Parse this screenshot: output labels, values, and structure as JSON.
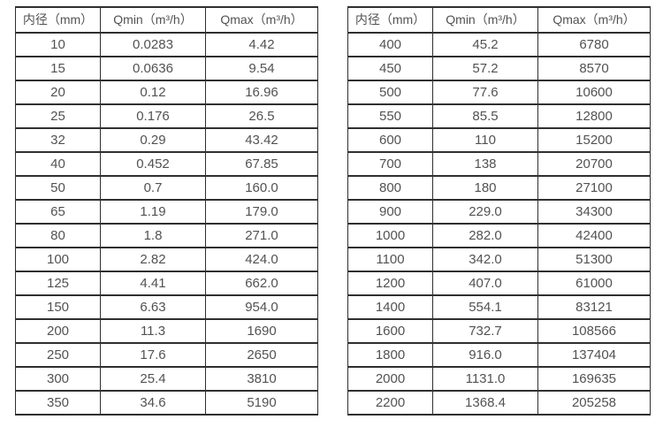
{
  "colors": {
    "background": "#ffffff",
    "border": "#2f2f2f",
    "text": "#525252"
  },
  "chart_data": [
    {
      "type": "table",
      "title": "",
      "columns": [
        "内径（mm）",
        "Qmin（m³/h）",
        "Qmax（m³/h）"
      ],
      "rows": [
        [
          "10",
          "0.0283",
          "4.42"
        ],
        [
          "15",
          "0.0636",
          "9.54"
        ],
        [
          "20",
          "0.12",
          "16.96"
        ],
        [
          "25",
          "0.176",
          "26.5"
        ],
        [
          "32",
          "0.29",
          "43.42"
        ],
        [
          "40",
          "0.452",
          "67.85"
        ],
        [
          "50",
          "0.7",
          "160.0"
        ],
        [
          "65",
          "1.19",
          "179.0"
        ],
        [
          "80",
          "1.8",
          "271.0"
        ],
        [
          "100",
          "2.82",
          "424.0"
        ],
        [
          "125",
          "4.41",
          "662.0"
        ],
        [
          "150",
          "6.63",
          "954.0"
        ],
        [
          "200",
          "11.3",
          "1690"
        ],
        [
          "250",
          "17.6",
          "2650"
        ],
        [
          "300",
          "25.4",
          "3810"
        ],
        [
          "350",
          "34.6",
          "5190"
        ]
      ]
    },
    {
      "type": "table",
      "title": "",
      "columns": [
        "内径（mm）",
        "Qmin（m³/h）",
        "Qmax（m³/h）"
      ],
      "rows": [
        [
          "400",
          "45.2",
          "6780"
        ],
        [
          "450",
          "57.2",
          "8570"
        ],
        [
          "500",
          "77.6",
          "10600"
        ],
        [
          "550",
          "85.5",
          "12800"
        ],
        [
          "600",
          "110",
          "15200"
        ],
        [
          "700",
          "138",
          "20700"
        ],
        [
          "800",
          "180",
          "27100"
        ],
        [
          "900",
          "229.0",
          "34300"
        ],
        [
          "1000",
          "282.0",
          "42400"
        ],
        [
          "1100",
          "342.0",
          "51300"
        ],
        [
          "1200",
          "407.0",
          "61000"
        ],
        [
          "1400",
          "554.1",
          "83121"
        ],
        [
          "1600",
          "732.7",
          "108566"
        ],
        [
          "1800",
          "916.0",
          "137404"
        ],
        [
          "2000",
          "1131.0",
          "169635"
        ],
        [
          "2200",
          "1368.4",
          "205258"
        ]
      ]
    }
  ]
}
